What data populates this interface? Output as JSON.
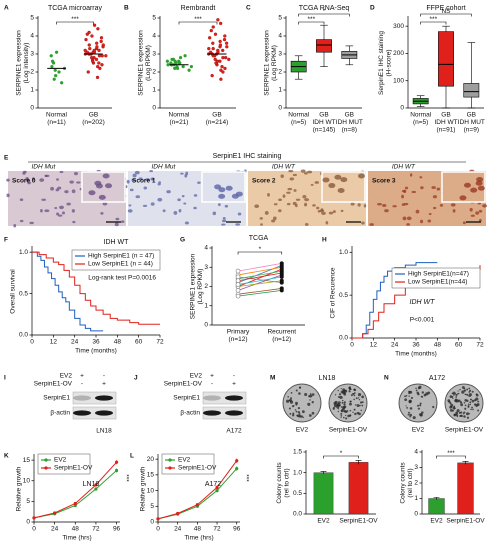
{
  "chart_data": [
    {
      "letter": "A",
      "type": "strip",
      "title": "TCGA microarray",
      "ylabel": [
        "SERPINE1 expression",
        "(Log intensity)"
      ],
      "categories": [
        [
          "Normal",
          "(n=11)"
        ],
        [
          "GB",
          "(n=202)"
        ]
      ],
      "colors": [
        "#2ca02c",
        "#e0201b"
      ],
      "values": [
        [
          1.4,
          1.6,
          1.8,
          2.0,
          2.1,
          2.2,
          2.3,
          2.5,
          2.6,
          2.9,
          3.1
        ],
        [
          1.7,
          2.0,
          2.2,
          2.3,
          2.4,
          2.5,
          2.5,
          2.6,
          2.7,
          2.7,
          2.8,
          2.8,
          2.9,
          2.9,
          2.9,
          3.0,
          3.0,
          3.0,
          3.0,
          3.1,
          3.1,
          3.1,
          3.2,
          3.2,
          3.2,
          3.3,
          3.3,
          3.4,
          3.4,
          3.5,
          3.5,
          3.6,
          3.7,
          3.8,
          3.9,
          4.0,
          4.1,
          4.2,
          4.4,
          4.6
        ]
      ],
      "medians": [
        2.2,
        3.0
      ],
      "ylim": [
        0,
        5
      ],
      "yticks": [
        0,
        1,
        2,
        3,
        4,
        5
      ],
      "significance": [
        {
          "label": "***",
          "groups": [
            0,
            1
          ]
        }
      ]
    },
    {
      "letter": "B",
      "type": "strip",
      "title": "Rembrandt",
      "ylabel": [
        "SERPINE1 expression",
        "(Log RPKM)"
      ],
      "categories": [
        [
          "Normal",
          "(n=21)"
        ],
        [
          "GB",
          "(n=214)"
        ]
      ],
      "colors": [
        "#2ca02c",
        "#e0201b"
      ],
      "values": [
        [
          2.1,
          2.2,
          2.2,
          2.3,
          2.3,
          2.3,
          2.4,
          2.4,
          2.4,
          2.4,
          2.5,
          2.5,
          2.5,
          2.5,
          2.6,
          2.6,
          2.6,
          2.7,
          2.7,
          2.8,
          2.9
        ],
        [
          1.6,
          1.8,
          2.0,
          2.1,
          2.2,
          2.3,
          2.4,
          2.5,
          2.5,
          2.6,
          2.6,
          2.7,
          2.7,
          2.8,
          2.8,
          2.9,
          2.9,
          3.0,
          3.0,
          3.0,
          3.1,
          3.1,
          3.2,
          3.2,
          3.3,
          3.3,
          3.4,
          3.4,
          3.5,
          3.6,
          3.6,
          3.7,
          3.8,
          3.9,
          4.0,
          4.1,
          4.3,
          4.5,
          4.7,
          4.9
        ]
      ],
      "medians": [
        2.4,
        3.0
      ],
      "ylim": [
        0,
        5
      ],
      "yticks": [
        0,
        1,
        2,
        3,
        4,
        5
      ],
      "significance": [
        {
          "label": "***",
          "groups": [
            0,
            1
          ]
        }
      ]
    },
    {
      "letter": "C",
      "type": "box",
      "title": "TCGA RNA-Seq",
      "ylabel": [
        "SERPINE1 expression",
        "(Log RPKM)"
      ],
      "categories": [
        [
          "Normal",
          "(n=5)"
        ],
        [
          "GB",
          "IDH WT",
          "(n=145)"
        ],
        [
          "GB",
          "IDH MUT",
          "(n=8)"
        ]
      ],
      "colors": [
        "#2ca02c",
        "#e0201b",
        "#9e9e9e"
      ],
      "boxes": [
        {
          "min": 1.6,
          "q1": 2.0,
          "median": 2.3,
          "q3": 2.6,
          "max": 2.9
        },
        {
          "min": 2.3,
          "q1": 3.1,
          "median": 3.5,
          "q3": 3.8,
          "max": 4.6
        },
        {
          "min": 2.4,
          "q1": 2.75,
          "median": 2.95,
          "q3": 3.15,
          "max": 3.45
        }
      ],
      "ylim": [
        0,
        5
      ],
      "yticks": [
        0,
        1,
        2,
        3,
        4,
        5
      ],
      "significance": [
        {
          "label": "***",
          "groups": [
            0,
            1
          ]
        },
        {
          "label": "*",
          "groups": [
            0,
            2
          ]
        }
      ]
    },
    {
      "letter": "D",
      "type": "box",
      "title": "FFPE cohort",
      "ylabel": [
        "SerpinE1 IHC staining",
        "(H-score)"
      ],
      "categories": [
        [
          "Normal",
          "(n=5)"
        ],
        [
          "GB",
          "IDH WT",
          "(n=91)"
        ],
        [
          "GB",
          "IDH MUT",
          "(n=9)"
        ]
      ],
      "colors": [
        "#2ca02c",
        "#e0201b",
        "#9e9e9e"
      ],
      "boxes": [
        {
          "min": 5,
          "q1": 15,
          "median": 25,
          "q3": 35,
          "max": 45
        },
        {
          "min": 0,
          "q1": 80,
          "median": 160,
          "q3": 280,
          "max": 300
        },
        {
          "min": 0,
          "q1": 40,
          "median": 60,
          "q3": 90,
          "max": 240
        }
      ],
      "ylim": [
        0,
        330
      ],
      "yticks": [
        0,
        100,
        200,
        300
      ],
      "significance": [
        {
          "label": "***",
          "groups": [
            0,
            1
          ]
        },
        {
          "label": "NS",
          "groups": [
            0,
            2
          ]
        }
      ]
    },
    {
      "letter": "E",
      "type": "image",
      "title": "SerpinE1 IHC staining",
      "tiles": [
        {
          "genotype": "IDH Mut",
          "score": "Score 0"
        },
        {
          "genotype": "IDH Mut",
          "score": "Score 1"
        },
        {
          "genotype": "IDH WT",
          "score": "Score 2"
        },
        {
          "genotype": "IDH WT",
          "score": "Score 3"
        }
      ]
    },
    {
      "letter": "F",
      "type": "step",
      "title": "IDH WT",
      "ylabel": [
        "Overall survival"
      ],
      "xlabel": "Time (months)",
      "xlim": [
        0,
        72
      ],
      "xticks": [
        0,
        12,
        24,
        36,
        48,
        60,
        72
      ],
      "ylim": [
        0,
        1.05
      ],
      "yticks": [
        {
          "value": 0,
          "label": "0.0"
        },
        0.5,
        {
          "value": 1,
          "label": "1.0"
        }
      ],
      "legend": "upper right",
      "annotation": "Log-rank test P=0.0016",
      "series": [
        {
          "name": "High SerpinE1 (n = 47)",
          "color": "#1f5fbf",
          "x": [
            0,
            3,
            5,
            7,
            9,
            11,
            13,
            15,
            17,
            19,
            21,
            24,
            27,
            30,
            33,
            40
          ],
          "values": [
            1,
            0.95,
            0.9,
            0.82,
            0.75,
            0.68,
            0.6,
            0.52,
            0.45,
            0.4,
            0.3,
            0.2,
            0.12,
            0.08,
            0.05,
            0.05
          ]
        },
        {
          "name": "Low SerpinE1 (n = 44)",
          "color": "#e0201b",
          "x": [
            0,
            4,
            8,
            12,
            15,
            18,
            21,
            24,
            27,
            30,
            33,
            36,
            40,
            44,
            48,
            55,
            60,
            72
          ],
          "values": [
            1,
            0.97,
            0.93,
            0.88,
            0.85,
            0.78,
            0.7,
            0.6,
            0.5,
            0.42,
            0.35,
            0.3,
            0.25,
            0.2,
            0.18,
            0.15,
            0.13,
            0.13
          ]
        }
      ]
    },
    {
      "letter": "G",
      "type": "paired",
      "title": "TCGA",
      "ylabel": [
        "SERPINE1 expression",
        "(Log RPKM)"
      ],
      "categories": [
        [
          "Primary",
          "(n=12)"
        ],
        [
          "Recurrent",
          "(n=12)"
        ]
      ],
      "ylim": [
        0,
        4
      ],
      "yticks": [
        0,
        1,
        2,
        3,
        4
      ],
      "significance": [
        {
          "label": "*",
          "groups": [
            0,
            1
          ]
        }
      ],
      "series": [
        {
          "color": "#e41a1c",
          "values": [
            2.0,
            2.9
          ]
        },
        {
          "color": "#377eb8",
          "values": [
            2.2,
            3.1
          ]
        },
        {
          "color": "#4daf4a",
          "values": [
            2.4,
            2.8
          ]
        },
        {
          "color": "#984ea3",
          "values": [
            1.8,
            2.6
          ]
        },
        {
          "color": "#ff7f00",
          "values": [
            2.6,
            3.0
          ]
        },
        {
          "color": "#a6a600",
          "values": [
            2.0,
            2.3
          ]
        },
        {
          "color": "#a65628",
          "values": [
            1.6,
            1.9
          ]
        },
        {
          "color": "#f781bf",
          "values": [
            2.8,
            3.2
          ]
        },
        {
          "color": "#17becf",
          "values": [
            2.1,
            2.5
          ]
        },
        {
          "color": "#1a9850",
          "values": [
            1.5,
            1.8
          ]
        },
        {
          "color": "#7f7f7f",
          "values": [
            2.5,
            2.2
          ]
        },
        {
          "color": "#d62728",
          "values": [
            2.3,
            2.7
          ]
        }
      ]
    },
    {
      "letter": "H",
      "type": "step",
      "title": "IDH WT",
      "ylabel": [
        "CIF of Recurence"
      ],
      "xlabel": "Time (months)",
      "xlim": [
        0,
        72
      ],
      "xticks": [
        0,
        12,
        24,
        36,
        48,
        60,
        72
      ],
      "ylim": [
        0,
        1.05
      ],
      "yticks": [
        {
          "value": 0,
          "label": "0.0"
        },
        0.5,
        {
          "value": 1,
          "label": "1.0"
        }
      ],
      "legend": "center right",
      "annotation": "P<0.001",
      "series": [
        {
          "name": "High SerpinE1(n=47)",
          "color": "#1f5fbf",
          "x": [
            0,
            6,
            8,
            10,
            12,
            14,
            16,
            18,
            20,
            24,
            30,
            36,
            48
          ],
          "values": [
            0,
            0.05,
            0.15,
            0.3,
            0.45,
            0.55,
            0.65,
            0.72,
            0.78,
            0.82,
            0.85,
            0.88,
            0.88
          ]
        },
        {
          "name": "Low SerpinE1(n=44)",
          "color": "#e0201b",
          "x": [
            0,
            6,
            9,
            12,
            15,
            18,
            24,
            30,
            36,
            48,
            60,
            72
          ],
          "values": [
            0,
            0.05,
            0.1,
            0.2,
            0.3,
            0.4,
            0.5,
            0.6,
            0.65,
            0.75,
            0.8,
            0.85
          ]
        }
      ]
    },
    {
      "letter": "I",
      "type": "blot",
      "conditions": [
        {
          "name": "EV2",
          "signs": [
            "+",
            "-"
          ]
        },
        {
          "name": "SerpinE1-OV",
          "signs": [
            "-",
            "+"
          ]
        }
      ],
      "rows": [
        "SerpinE1",
        "β-actin"
      ],
      "cell_line": "LN18"
    },
    {
      "letter": "J",
      "type": "blot",
      "conditions": [
        {
          "name": "EV2",
          "signs": [
            "+",
            "-"
          ]
        },
        {
          "name": "SerpinE1-OV",
          "signs": [
            "-",
            "+"
          ]
        }
      ],
      "rows": [
        "SerpinE1",
        "β-actin"
      ],
      "cell_line": "A172"
    },
    {
      "letter": "K",
      "type": "line",
      "title": "LN18",
      "ylabel": [
        "Relative growth"
      ],
      "xlabel": "Time (hrs)",
      "x": [
        0,
        24,
        48,
        72,
        96
      ],
      "xlim": [
        0,
        100
      ],
      "xticks": [
        0,
        24,
        48,
        72,
        96
      ],
      "ylim": [
        0,
        16
      ],
      "yticks": [
        0,
        5,
        10,
        15
      ],
      "legend": "upper left",
      "annotation": "***",
      "series": [
        {
          "name": "EV2",
          "color": "#2ca02c",
          "values": [
            1,
            2,
            4,
            8,
            12.5
          ],
          "errors": [
            0.1,
            0.2,
            0.3,
            0.4,
            0.5
          ]
        },
        {
          "name": "SerpinE1-OV",
          "color": "#e0201b",
          "values": [
            1,
            2.2,
            4.5,
            9,
            14.5
          ],
          "errors": [
            0.1,
            0.2,
            0.3,
            0.4,
            0.5
          ]
        }
      ]
    },
    {
      "letter": "L",
      "type": "line",
      "title": "A172",
      "ylabel": [
        "Relative growth"
      ],
      "xlabel": "Time (hrs)",
      "x": [
        0,
        24,
        48,
        72,
        96
      ],
      "xlim": [
        0,
        100
      ],
      "xticks": [
        0,
        24,
        48,
        72,
        96
      ],
      "ylim": [
        0,
        21
      ],
      "yticks": [
        0,
        5,
        10,
        15,
        20
      ],
      "legend": "upper left",
      "annotation": "***",
      "series": [
        {
          "name": "EV2",
          "color": "#2ca02c",
          "values": [
            1,
            2.5,
            5,
            10,
            17
          ],
          "errors": [
            0.1,
            0.3,
            0.4,
            0.6,
            0.7
          ]
        },
        {
          "name": "SerpinE1-OV",
          "color": "#e0201b",
          "values": [
            1,
            2.7,
            5.5,
            11,
            19.5
          ],
          "errors": [
            0.1,
            0.3,
            0.4,
            0.6,
            0.7
          ]
        }
      ]
    },
    {
      "letter": "M",
      "type": "bar",
      "title": "LN18",
      "dish_labels": [
        "EV2",
        "SerpinE1-OV"
      ],
      "ylabel": [
        "Colony counts",
        "(rel to ctrl)"
      ],
      "categories": [
        "EV2",
        "SerpinE1-OV"
      ],
      "colors": [
        "#2ca02c",
        "#e0201b"
      ],
      "values": [
        1.0,
        1.25
      ],
      "errors": [
        0.03,
        0.05
      ],
      "ylim": [
        0,
        1.5
      ],
      "yticks": [
        {
          "value": 0,
          "label": "0.0"
        },
        0.5,
        {
          "value": 1,
          "label": "1.0"
        },
        1.5
      ],
      "significance": [
        {
          "label": "*",
          "groups": [
            0,
            1
          ]
        }
      ]
    },
    {
      "letter": "N",
      "type": "bar",
      "title": "A172",
      "dish_labels": [
        "EV2",
        "SerpinE1-OV"
      ],
      "ylabel": [
        "Colony counts",
        "(rel to ctrl)"
      ],
      "categories": [
        "EV2",
        "SerpinE1-OV"
      ],
      "colors": [
        "#2ca02c",
        "#e0201b"
      ],
      "values": [
        1.0,
        3.3
      ],
      "errors": [
        0.08,
        0.1
      ],
      "ylim": [
        0,
        4
      ],
      "yticks": [
        0,
        1,
        2,
        3,
        4
      ],
      "significance": [
        {
          "label": "***",
          "groups": [
            0,
            1
          ]
        }
      ]
    }
  ]
}
